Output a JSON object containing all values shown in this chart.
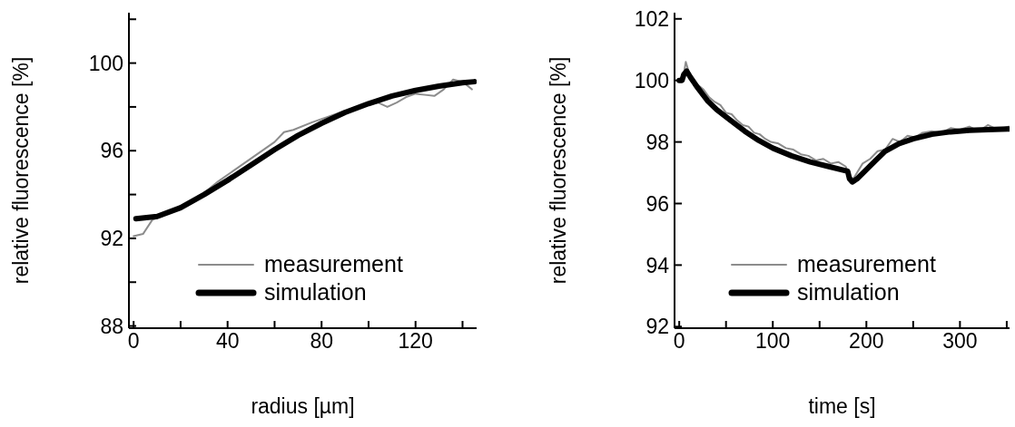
{
  "chart_data": [
    {
      "type": "line",
      "xlabel": "radius [µm]",
      "ylabel": "relative fluorescence [%]",
      "xlim": [
        -2,
        146
      ],
      "ylim": [
        87.9,
        102.3
      ],
      "xticks": [
        0,
        {
          "value": 20,
          "label": null
        },
        40,
        {
          "value": 60,
          "label": null
        },
        80,
        {
          "value": 100,
          "label": null
        },
        120,
        {
          "value": 140,
          "label": null
        }
      ],
      "yticks": [
        88,
        {
          "value": 90,
          "label": null
        },
        92,
        {
          "value": 94,
          "label": null
        },
        96,
        {
          "value": 98,
          "label": null
        },
        100,
        {
          "value": 102,
          "label": null
        }
      ],
      "grid": false,
      "legend": "bottom right",
      "marker": "none",
      "line_style": "solid",
      "series": [
        {
          "name": "measurement",
          "color": "#8c8c8c",
          "x": [
            0,
            4,
            8,
            12,
            16,
            20,
            28,
            36,
            44,
            52,
            60,
            64,
            68,
            76,
            84,
            88,
            96,
            104,
            108,
            112,
            116,
            120,
            124,
            128,
            132,
            136,
            140,
            144
          ],
          "values": [
            92.1,
            92.2,
            92.85,
            93.0,
            93.2,
            93.4,
            93.9,
            94.6,
            95.2,
            95.8,
            96.4,
            96.85,
            96.95,
            97.3,
            97.6,
            97.75,
            98.0,
            98.2,
            98.0,
            98.2,
            98.45,
            98.6,
            98.55,
            98.5,
            98.8,
            99.25,
            99.15,
            98.8
          ]
        },
        {
          "name": "simulation",
          "color": "#000000",
          "x": [
            1,
            10,
            20,
            30,
            40,
            50,
            60,
            70,
            80,
            90,
            100,
            110,
            120,
            130,
            140,
            145
          ],
          "values": [
            92.9,
            93.0,
            93.4,
            94.0,
            94.65,
            95.35,
            96.05,
            96.7,
            97.25,
            97.75,
            98.15,
            98.5,
            98.75,
            98.95,
            99.1,
            99.15
          ]
        }
      ]
    },
    {
      "type": "line",
      "xlabel": "time [s]",
      "ylabel": "relative fluorescence [%]",
      "xlim": [
        -5,
        353
      ],
      "ylim": [
        91.95,
        102.2
      ],
      "xticks": [
        0,
        {
          "value": 50,
          "label": null
        },
        100,
        {
          "value": 150,
          "label": null
        },
        200,
        {
          "value": 250,
          "label": null
        },
        300,
        {
          "value": 350,
          "label": null
        }
      ],
      "yticks": [
        92,
        94,
        96,
        98,
        100,
        102
      ],
      "grid": false,
      "legend": "bottom right",
      "marker": "none",
      "line_style": "solid",
      "series": [
        {
          "name": "measurement",
          "color": "#8c8c8c",
          "x": [
            0,
            4,
            7,
            10,
            14,
            20,
            26,
            32,
            38,
            44,
            50,
            56,
            62,
            68,
            74,
            80,
            86,
            92,
            98,
            106,
            114,
            122,
            130,
            138,
            146,
            154,
            162,
            170,
            178,
            182,
            186,
            190,
            196,
            204,
            212,
            220,
            228,
            236,
            244,
            252,
            260,
            270,
            280,
            290,
            300,
            310,
            320,
            330,
            340,
            352
          ],
          "values": [
            100.0,
            100.05,
            100.6,
            100.3,
            100.0,
            99.85,
            99.7,
            99.45,
            99.3,
            99.2,
            98.95,
            98.9,
            98.7,
            98.55,
            98.5,
            98.3,
            98.25,
            98.1,
            98.0,
            97.95,
            97.8,
            97.75,
            97.6,
            97.55,
            97.4,
            97.45,
            97.3,
            97.35,
            97.2,
            96.9,
            96.8,
            97.0,
            97.3,
            97.45,
            97.7,
            97.75,
            98.1,
            98.0,
            98.2,
            98.15,
            98.3,
            98.35,
            98.3,
            98.45,
            98.4,
            98.5,
            98.35,
            98.55,
            98.4,
            98.5
          ]
        },
        {
          "name": "simulation",
          "color": "#000000",
          "x": [
            0,
            3,
            5,
            8,
            12,
            20,
            30,
            40,
            55,
            70,
            85,
            100,
            120,
            140,
            160,
            180,
            182,
            185,
            190,
            200,
            210,
            220,
            235,
            250,
            270,
            290,
            310,
            330,
            352
          ],
          "values": [
            100.0,
            100.0,
            100.2,
            100.3,
            100.1,
            99.75,
            99.35,
            99.05,
            98.7,
            98.35,
            98.05,
            97.8,
            97.55,
            97.35,
            97.2,
            97.05,
            96.8,
            96.7,
            96.8,
            97.1,
            97.4,
            97.7,
            97.95,
            98.1,
            98.25,
            98.33,
            98.38,
            98.4,
            98.42
          ]
        }
      ]
    }
  ]
}
